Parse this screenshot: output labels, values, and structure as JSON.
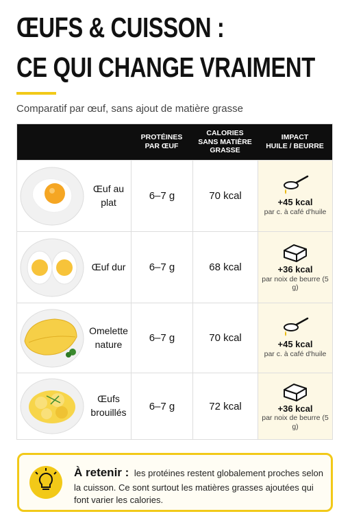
{
  "header": {
    "title": [
      "ŒUFS & CUISSON :",
      "CE QUI CHANGE VRAIMENT"
    ],
    "subtitle": "Comparatif par œuf, sans ajout de matière grasse"
  },
  "table": {
    "headers": [
      [
        "PROTÉINES",
        "PAR ŒUF"
      ],
      [
        "CALORIES",
        "SANS MATIÈRE",
        "GRASSE"
      ],
      [
        "IMPACT",
        "HUILE / BEURRE"
      ]
    ],
    "rows": [
      {
        "name": "Œuf au plat",
        "protein": "6–7 g",
        "calories": "70 kcal",
        "impact": "+45 kcal",
        "note": "par c. à café d'huile"
      },
      {
        "name": "Œuf dur",
        "protein": "6–7 g",
        "calories": "68 kcal",
        "impact": "+36 kcal",
        "note": "par noix de beurre (5 g)"
      },
      {
        "name": "Omelette nature",
        "protein": "6–7 g",
        "calories": "70 kcal",
        "impact": "+45 kcal",
        "note": "par c. à café d'huile"
      },
      {
        "name": "Œufs brouillés",
        "protein": "6–7 g",
        "calories": "72 kcal",
        "impact": "+36 kcal",
        "note": "par noix de beurre (5 g)"
      }
    ]
  },
  "callout": {
    "lead": "À retenir :",
    "text": "les protéines restent globalement proches selon la cuisson. Ce sont surtout les matières grasses ajoutées qui font varier les calories."
  }
}
